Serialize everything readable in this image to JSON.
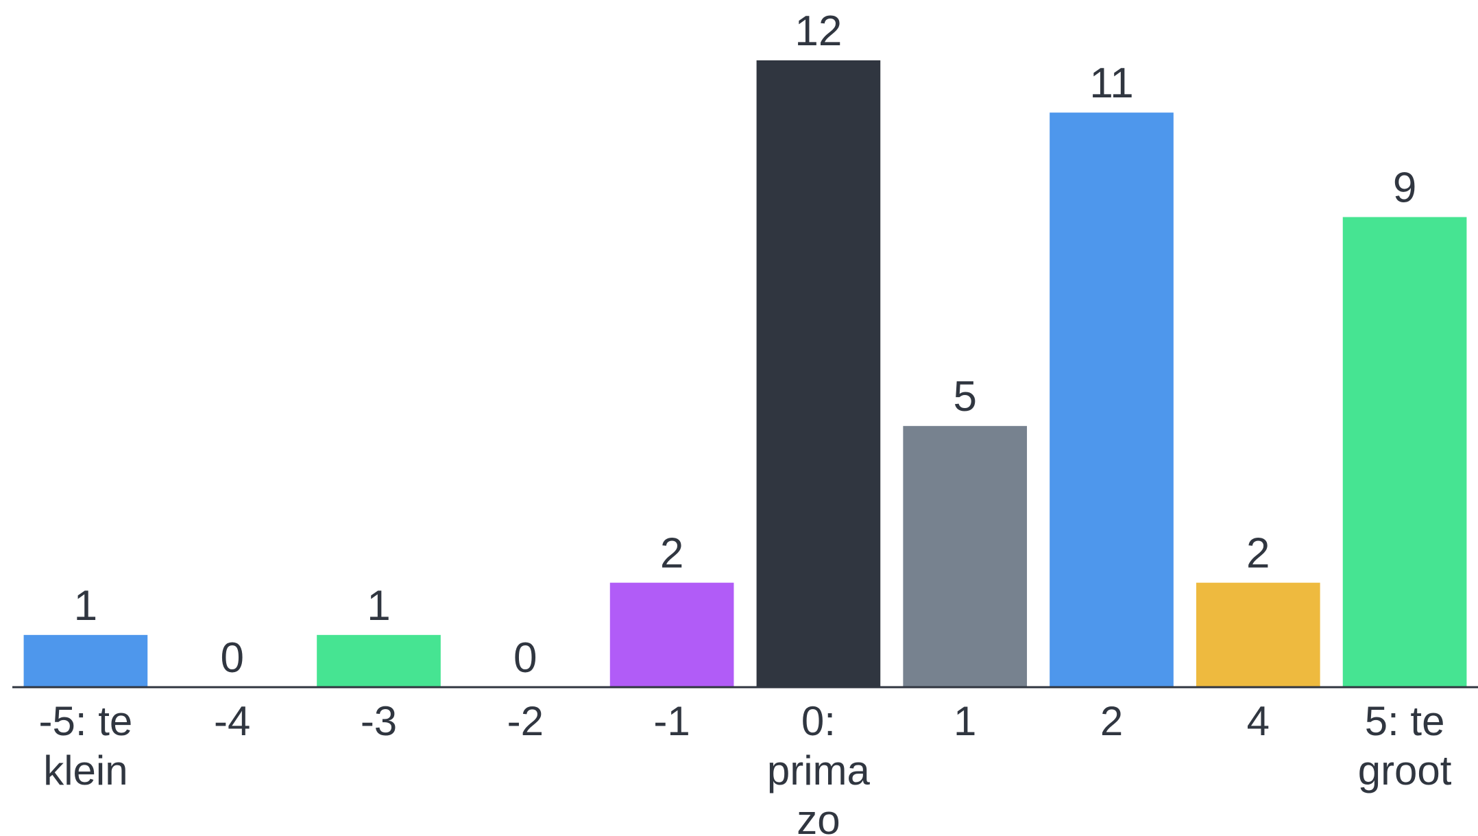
{
  "chart_data": {
    "type": "bar",
    "categories": [
      [
        "-5: te",
        "klein"
      ],
      [
        "-4"
      ],
      [
        "-3"
      ],
      [
        "-2"
      ],
      [
        "-1"
      ],
      [
        "0:",
        "prima",
        "zo"
      ],
      [
        "1"
      ],
      [
        "2"
      ],
      [
        "4"
      ],
      [
        "5: te",
        "groot"
      ]
    ],
    "values": [
      1,
      0,
      1,
      0,
      2,
      12,
      5,
      11,
      2,
      9
    ],
    "colors": [
      "#4e97ec",
      "#46e492",
      "#46e492",
      "#4e97ec",
      "#b15cf7",
      "#303640",
      "#77828f",
      "#4e97ec",
      "#eeba3f",
      "#46e492"
    ],
    "title": "",
    "xlabel": "",
    "ylabel": "",
    "ylim": [
      0,
      12
    ],
    "grid": false,
    "data_labels": true,
    "axis_color": "#303640",
    "text_color": "#303640"
  }
}
